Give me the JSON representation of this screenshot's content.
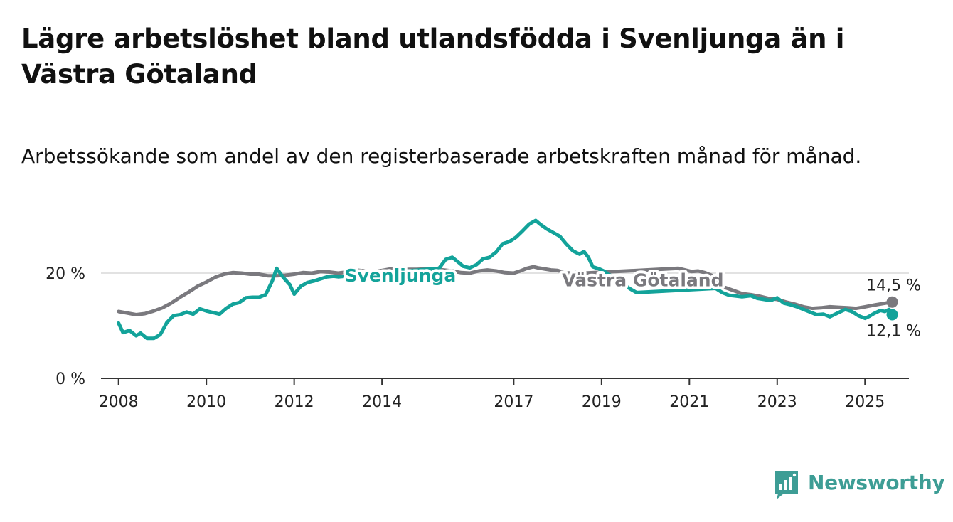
{
  "title": "Lägre arbetslöshet bland utlandsfödda i Svenljunga än i Västra Götaland",
  "subtitle": "Arbetssökande som andel av den registerbaserade arbetskraften månad för månad.",
  "brand": {
    "name": "Newsworthy",
    "color": "#3d9d95"
  },
  "chart_data": {
    "type": "line",
    "title": "Lägre arbetslöshet bland utlandsfödda i Svenljunga än i Västra Götaland",
    "subtitle": "Arbetssökande som andel av den registerbaserade arbetskraften månad för månad.",
    "xlabel": "",
    "ylabel": "",
    "xlim": [
      2007.6,
      2026.0
    ],
    "ylim": [
      0,
      30
    ],
    "x_ticks": [
      2008,
      2010,
      2012,
      2014,
      2017,
      2019,
      2021,
      2023,
      2025
    ],
    "x_tick_labels": [
      "2008",
      "2010",
      "2012",
      "2014",
      "2017",
      "2019",
      "2021",
      "2023",
      "2025"
    ],
    "y_ticks": [
      0,
      20
    ],
    "y_tick_labels": [
      "0 %",
      "20 %"
    ],
    "grid": "horizontal",
    "legend": "inline labels",
    "series": [
      {
        "name": "Svenljunga",
        "color": "#13a39a",
        "end_label": "12,1 %",
        "points": [
          [
            2008.0,
            10.5
          ],
          [
            2008.1,
            8.7
          ],
          [
            2008.25,
            9.1
          ],
          [
            2008.4,
            8.1
          ],
          [
            2008.5,
            8.6
          ],
          [
            2008.65,
            7.6
          ],
          [
            2008.8,
            7.6
          ],
          [
            2008.95,
            8.3
          ],
          [
            2009.1,
            10.6
          ],
          [
            2009.25,
            11.9
          ],
          [
            2009.4,
            12.1
          ],
          [
            2009.55,
            12.6
          ],
          [
            2009.7,
            12.2
          ],
          [
            2009.85,
            13.2
          ],
          [
            2010.0,
            12.8
          ],
          [
            2010.15,
            12.5
          ],
          [
            2010.3,
            12.2
          ],
          [
            2010.45,
            13.3
          ],
          [
            2010.6,
            14.1
          ],
          [
            2010.75,
            14.4
          ],
          [
            2010.9,
            15.3
          ],
          [
            2011.05,
            15.4
          ],
          [
            2011.2,
            15.4
          ],
          [
            2011.35,
            15.9
          ],
          [
            2011.5,
            18.5
          ],
          [
            2011.6,
            20.9
          ],
          [
            2011.75,
            19.2
          ],
          [
            2011.9,
            17.8
          ],
          [
            2012.0,
            16.0
          ],
          [
            2012.15,
            17.5
          ],
          [
            2012.3,
            18.2
          ],
          [
            2012.45,
            18.5
          ],
          [
            2012.6,
            18.9
          ],
          [
            2012.75,
            19.3
          ],
          [
            2012.9,
            19.4
          ],
          [
            2013.0,
            19.3
          ],
          [
            2015.3,
            20.9
          ],
          [
            2015.45,
            22.6
          ],
          [
            2015.6,
            23.0
          ],
          [
            2015.75,
            22.0
          ],
          [
            2015.85,
            21.3
          ],
          [
            2016.0,
            21.0
          ],
          [
            2016.15,
            21.6
          ],
          [
            2016.3,
            22.7
          ],
          [
            2016.45,
            23.0
          ],
          [
            2016.6,
            24.0
          ],
          [
            2016.75,
            25.6
          ],
          [
            2016.9,
            26.0
          ],
          [
            2017.05,
            26.8
          ],
          [
            2017.2,
            28.0
          ],
          [
            2017.35,
            29.3
          ],
          [
            2017.5,
            30.0
          ],
          [
            2017.6,
            29.3
          ],
          [
            2017.75,
            28.4
          ],
          [
            2017.9,
            27.7
          ],
          [
            2018.05,
            27.0
          ],
          [
            2018.2,
            25.5
          ],
          [
            2018.35,
            24.2
          ],
          [
            2018.5,
            23.6
          ],
          [
            2018.6,
            24.1
          ],
          [
            2018.7,
            23.0
          ],
          [
            2018.8,
            21.2
          ],
          [
            2018.95,
            20.8
          ],
          [
            2019.05,
            20.4
          ],
          [
            2019.65,
            17.0
          ],
          [
            2019.8,
            16.3
          ],
          [
            2021.6,
            17.1
          ],
          [
            2021.75,
            16.3
          ],
          [
            2021.9,
            15.8
          ],
          [
            2022.0,
            15.7
          ],
          [
            2022.2,
            15.5
          ],
          [
            2022.4,
            15.7
          ],
          [
            2022.55,
            15.2
          ],
          [
            2022.7,
            15.0
          ],
          [
            2022.85,
            14.8
          ],
          [
            2023.0,
            15.3
          ],
          [
            2023.15,
            14.3
          ],
          [
            2023.3,
            14.0
          ],
          [
            2023.45,
            13.6
          ],
          [
            2023.6,
            13.1
          ],
          [
            2023.75,
            12.6
          ],
          [
            2023.9,
            12.1
          ],
          [
            2024.05,
            12.2
          ],
          [
            2024.2,
            11.7
          ],
          [
            2024.35,
            12.3
          ],
          [
            2024.45,
            12.7
          ],
          [
            2024.55,
            13.1
          ],
          [
            2024.7,
            12.7
          ],
          [
            2024.85,
            11.9
          ],
          [
            2025.0,
            11.4
          ],
          [
            2025.1,
            11.8
          ],
          [
            2025.2,
            12.3
          ],
          [
            2025.35,
            12.9
          ],
          [
            2025.45,
            12.7
          ],
          [
            2025.55,
            13.1
          ],
          [
            2025.62,
            12.1
          ]
        ]
      },
      {
        "name": "Västra Götaland",
        "color": "#7a797e",
        "end_label": "14,5 %",
        "points": [
          [
            2008.0,
            12.7
          ],
          [
            2008.2,
            12.4
          ],
          [
            2008.4,
            12.1
          ],
          [
            2008.6,
            12.3
          ],
          [
            2008.8,
            12.8
          ],
          [
            2009.0,
            13.4
          ],
          [
            2009.2,
            14.3
          ],
          [
            2009.4,
            15.4
          ],
          [
            2009.6,
            16.4
          ],
          [
            2009.8,
            17.5
          ],
          [
            2010.0,
            18.3
          ],
          [
            2010.2,
            19.2
          ],
          [
            2010.4,
            19.8
          ],
          [
            2010.6,
            20.1
          ],
          [
            2010.8,
            20.0
          ],
          [
            2011.0,
            19.8
          ],
          [
            2011.2,
            19.8
          ],
          [
            2011.4,
            19.5
          ],
          [
            2011.6,
            19.5
          ],
          [
            2011.8,
            19.6
          ],
          [
            2012.0,
            19.8
          ],
          [
            2012.2,
            20.1
          ],
          [
            2012.4,
            20.0
          ],
          [
            2012.6,
            20.3
          ],
          [
            2012.8,
            20.2
          ],
          [
            2013.0,
            20.0
          ],
          [
            2013.2,
            20.2
          ],
          [
            2013.4,
            20.6
          ],
          [
            2013.6,
            20.4
          ],
          [
            2013.8,
            20.2
          ],
          [
            2014.0,
            20.5
          ],
          [
            2014.2,
            20.8
          ],
          [
            2014.4,
            20.6
          ],
          [
            2014.6,
            20.7
          ],
          [
            2014.8,
            20.7
          ],
          [
            2015.0,
            20.8
          ],
          [
            2015.2,
            20.8
          ],
          [
            2015.4,
            20.6
          ],
          [
            2015.6,
            20.4
          ],
          [
            2015.8,
            20.1
          ],
          [
            2016.0,
            20.0
          ],
          [
            2016.2,
            20.4
          ],
          [
            2016.4,
            20.6
          ],
          [
            2016.6,
            20.4
          ],
          [
            2016.8,
            20.1
          ],
          [
            2017.0,
            20.0
          ],
          [
            2017.15,
            20.4
          ],
          [
            2017.3,
            20.9
          ],
          [
            2017.45,
            21.2
          ],
          [
            2017.55,
            21.0
          ],
          [
            2017.7,
            20.8
          ],
          [
            2017.85,
            20.6
          ],
          [
            2018.0,
            20.5
          ],
          [
            2018.15,
            20.1
          ],
          [
            2018.3,
            20.0
          ],
          [
            2018.45,
            20.2
          ],
          [
            2018.6,
            20.0
          ],
          [
            2020.75,
            20.9
          ],
          [
            2020.9,
            20.6
          ],
          [
            2021.05,
            20.3
          ],
          [
            2021.2,
            20.4
          ],
          [
            2021.35,
            20.1
          ],
          [
            2021.5,
            19.6
          ],
          [
            2021.65,
            18.3
          ],
          [
            2021.8,
            17.3
          ],
          [
            2022.0,
            16.7
          ],
          [
            2022.2,
            16.1
          ],
          [
            2022.4,
            15.9
          ],
          [
            2022.6,
            15.6
          ],
          [
            2022.8,
            15.2
          ],
          [
            2023.0,
            15.0
          ],
          [
            2023.2,
            14.5
          ],
          [
            2023.4,
            14.1
          ],
          [
            2023.6,
            13.6
          ],
          [
            2023.8,
            13.3
          ],
          [
            2024.0,
            13.4
          ],
          [
            2024.2,
            13.6
          ],
          [
            2024.4,
            13.5
          ],
          [
            2024.6,
            13.4
          ],
          [
            2024.8,
            13.3
          ],
          [
            2025.0,
            13.6
          ],
          [
            2025.2,
            13.9
          ],
          [
            2025.4,
            14.2
          ],
          [
            2025.62,
            14.5
          ]
        ]
      }
    ],
    "annotations": [
      {
        "text": "Svenljunga",
        "x": 2013.15,
        "y": 18.4,
        "series": "Svenljunga"
      },
      {
        "text": "Västra Götaland",
        "x": 2018.1,
        "y": 17.5,
        "series": "Västra Götaland"
      }
    ]
  }
}
